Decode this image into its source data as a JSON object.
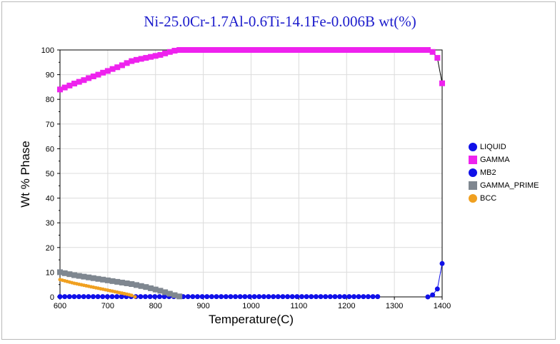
{
  "chart_data": {
    "type": "line",
    "title": "Ni-25.0Cr-1.7Al-0.6Ti-14.1Fe-0.006B wt(%)",
    "xlabel": "Temperature(C)",
    "ylabel": "Wt % Phase",
    "xlim": [
      600,
      1400
    ],
    "ylim": [
      0,
      100
    ],
    "xticks": [
      600,
      700,
      800,
      900,
      1000,
      1100,
      1200,
      1300,
      1400
    ],
    "yticks": [
      0,
      10,
      20,
      30,
      40,
      50,
      60,
      70,
      80,
      90,
      100
    ],
    "grid": true,
    "legend_position": "right",
    "series": [
      {
        "name": "LIQUID",
        "color": "#1010e8",
        "marker": "circle",
        "points": [
          [
            1370,
            0
          ],
          [
            1380,
            0.8
          ],
          [
            1390,
            3.2
          ],
          [
            1400,
            13.5
          ]
        ]
      },
      {
        "name": "GAMMA",
        "color": "#ee22ee",
        "marker": "square",
        "points": [
          [
            600,
            84
          ],
          [
            610,
            84.8
          ],
          [
            620,
            85.6
          ],
          [
            630,
            86.4
          ],
          [
            640,
            87.1
          ],
          [
            650,
            87.8
          ],
          [
            660,
            88.6
          ],
          [
            670,
            89.3
          ],
          [
            680,
            90.0
          ],
          [
            690,
            90.8
          ],
          [
            700,
            91.5
          ],
          [
            710,
            92.3
          ],
          [
            720,
            93.0
          ],
          [
            730,
            93.8
          ],
          [
            740,
            94.7
          ],
          [
            750,
            95.5
          ],
          [
            760,
            96.0
          ],
          [
            770,
            96.4
          ],
          [
            780,
            96.8
          ],
          [
            790,
            97.2
          ],
          [
            800,
            97.6
          ],
          [
            810,
            98.0
          ],
          [
            820,
            98.6
          ],
          [
            830,
            99.2
          ],
          [
            840,
            99.7
          ],
          [
            850,
            100
          ],
          [
            1350,
            100
          ],
          [
            1360,
            100
          ],
          [
            1370,
            100
          ],
          [
            1380,
            99.2
          ],
          [
            1390,
            96.8
          ],
          [
            1400,
            86.5
          ]
        ]
      },
      {
        "name": "MB2",
        "color": "#1010e8",
        "marker": "circle",
        "points": [
          [
            600,
            0.1
          ],
          [
            1265,
            0.1
          ]
        ]
      },
      {
        "name": "GAMMA_PRIME",
        "color": "#7f8790",
        "marker": "square",
        "points": [
          [
            600,
            10
          ],
          [
            610,
            9.6
          ],
          [
            620,
            9.2
          ],
          [
            630,
            8.8
          ],
          [
            640,
            8.5
          ],
          [
            650,
            8.2
          ],
          [
            660,
            7.9
          ],
          [
            670,
            7.6
          ],
          [
            680,
            7.3
          ],
          [
            690,
            7.0
          ],
          [
            700,
            6.7
          ],
          [
            710,
            6.4
          ],
          [
            720,
            6.1
          ],
          [
            730,
            5.8
          ],
          [
            740,
            5.5
          ],
          [
            750,
            5.2
          ],
          [
            760,
            4.8
          ],
          [
            770,
            4.4
          ],
          [
            780,
            4.0
          ],
          [
            790,
            3.5
          ],
          [
            800,
            3.0
          ],
          [
            810,
            2.5
          ],
          [
            820,
            1.9
          ],
          [
            830,
            1.3
          ],
          [
            840,
            0.7
          ],
          [
            850,
            0.2
          ]
        ]
      },
      {
        "name": "BCC",
        "color": "#f0a020",
        "marker": "circle",
        "points": [
          [
            600,
            7
          ],
          [
            610,
            6.5
          ],
          [
            620,
            6.0
          ],
          [
            630,
            5.5
          ],
          [
            640,
            5.1
          ],
          [
            650,
            4.7
          ],
          [
            660,
            4.3
          ],
          [
            670,
            3.9
          ],
          [
            680,
            3.5
          ],
          [
            690,
            3.1
          ],
          [
            700,
            2.7
          ],
          [
            710,
            2.3
          ],
          [
            720,
            1.9
          ],
          [
            730,
            1.5
          ],
          [
            740,
            1.1
          ],
          [
            750,
            0.6
          ],
          [
            757,
            0
          ]
        ]
      }
    ]
  }
}
